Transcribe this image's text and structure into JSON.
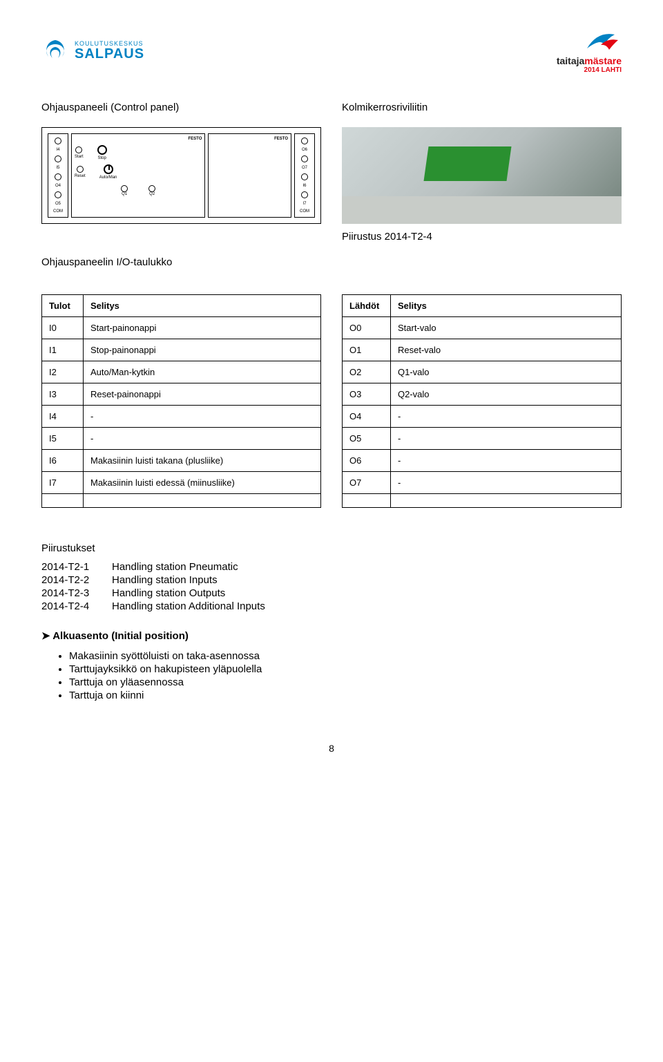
{
  "header": {
    "logo_left_small": "KOULUTUSKESKUS",
    "logo_left_big": "SALPAUS",
    "logo_right_main": "taitaja",
    "logo_right_main2": "mästare",
    "logo_right_sub": "2014 LAHTI"
  },
  "section_titles": {
    "control_panel": "Ohjauspaneeli (Control panel)",
    "connector": "Kolmikerrosriviliitin",
    "drawing_ref": "Piirustus 2014-T2-4",
    "io_table": "Ohjauspaneelin I/O-taulukko",
    "drawings": "Piirustukset",
    "initial": "Alkuasento (Initial position)"
  },
  "inputs_table": {
    "headers": [
      "Tulot",
      "Selitys"
    ],
    "rows": [
      [
        "I0",
        "Start-painonappi"
      ],
      [
        "I1",
        "Stop-painonappi"
      ],
      [
        "I2",
        "Auto/Man-kytkin"
      ],
      [
        "I3",
        "Reset-painonappi"
      ],
      [
        "I4",
        "-"
      ],
      [
        "I5",
        "-"
      ],
      [
        "I6",
        "Makasiinin luisti takana (plusliike)"
      ],
      [
        "I7",
        "Makasiinin luisti edessä (miinusliike)"
      ],
      [
        "",
        ""
      ]
    ],
    "col_widths": [
      "60px",
      "auto"
    ]
  },
  "outputs_table": {
    "headers": [
      "Lähdöt",
      "Selitys"
    ],
    "rows": [
      [
        "O0",
        "Start-valo"
      ],
      [
        "O1",
        "Reset-valo"
      ],
      [
        "O2",
        "Q1-valo"
      ],
      [
        "O3",
        "Q2-valo"
      ],
      [
        "O4",
        "-"
      ],
      [
        "O5",
        "-"
      ],
      [
        "O6",
        "-"
      ],
      [
        "O7",
        "-"
      ],
      [
        "",
        ""
      ]
    ],
    "col_widths": [
      "70px",
      "auto"
    ]
  },
  "drawings_list": [
    {
      "key": "2014-T2-1",
      "val": "Handling station Pneumatic"
    },
    {
      "key": "2014-T2-2",
      "val": "Handling station Inputs"
    },
    {
      "key": "2014-T2-3",
      "val": "Handling station Outputs"
    },
    {
      "key": "2014-T2-4",
      "val": "Handling station Additional Inputs"
    }
  ],
  "initial_bullets": [
    "Makasiinin syöttöluisti on taka-asennossa",
    "Tarttujayksikkö on hakupisteen yläpuolella",
    "Tarttuja on yläasennossa",
    "Tarttuja on kiinni"
  ],
  "panel_labels": {
    "festo": "FESTO",
    "start": "Start",
    "stop": "Stop",
    "reset": "Reset",
    "auto": "Auto/Man"
  },
  "page_number": "8",
  "colors": {
    "brand_blue": "#0082c3",
    "brand_red": "#e30613",
    "text": "#000000",
    "border": "#000000"
  }
}
